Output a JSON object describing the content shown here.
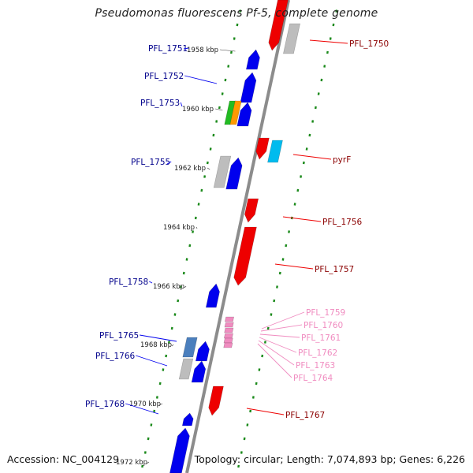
{
  "title": "Pseudomonas fluorescens Pf-5, complete genome",
  "footer": {
    "accession": "Accession: NC_004129",
    "topology": "Topology: circular; Length: 7,074,893 bp; Genes: 6,226"
  },
  "colors": {
    "backbone": "#8c8c8c",
    "ticks": "#1b8a1b",
    "forward_genes": "#0000ee",
    "reverse_genes": "#ee0000",
    "small_genes": "#f08cc0"
  },
  "positions_kbp": [
    "1958 kbp",
    "1960 kbp",
    "1962 kbp",
    "1964 kbp",
    "1966 kbp",
    "1968 kbp",
    "1970 kbp",
    "1972 kbp"
  ],
  "left_genes": [
    "PFL_1751",
    "PFL_1752",
    "PFL_1753",
    "PFL_1755",
    "PFL_1758",
    "PFL_1765",
    "PFL_1766",
    "PFL_1768"
  ],
  "right_genes": [
    "PFL_1750",
    "pyrF",
    "PFL_1756",
    "PFL_1757",
    "PFL_1767"
  ],
  "pink_genes": [
    "PFL_1759",
    "PFL_1760",
    "PFL_1761",
    "PFL_1762",
    "PFL_1763",
    "PFL_1764"
  ]
}
